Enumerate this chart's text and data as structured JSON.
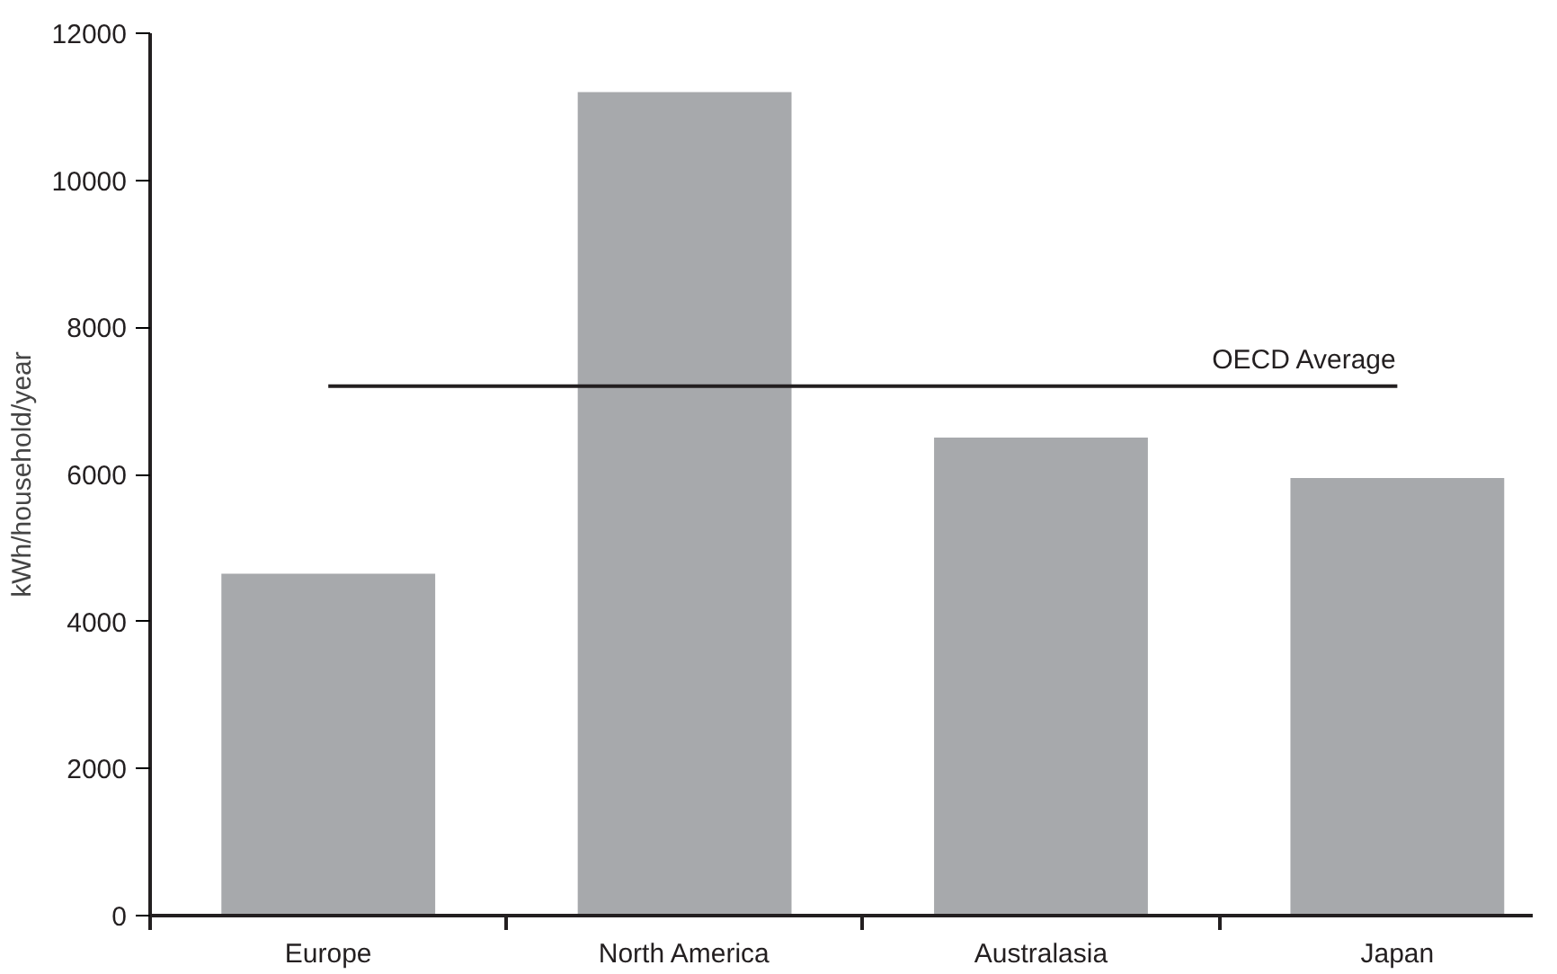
{
  "chart_data": {
    "type": "bar",
    "ylabel": "kWh/household/year",
    "categories": [
      "Europe",
      "North America",
      "Australasia",
      "Japan"
    ],
    "values": [
      4650,
      11200,
      6500,
      5950
    ],
    "color": "#a7a9ac",
    "ylim": [
      0,
      12000
    ],
    "yticks": [
      0,
      2000,
      4000,
      6000,
      8000,
      10000,
      12000
    ],
    "grid": false,
    "ref_lines": [
      {
        "axis": "y",
        "value": 7200,
        "label": "OECD Average",
        "color": "#231f20"
      }
    ]
  }
}
